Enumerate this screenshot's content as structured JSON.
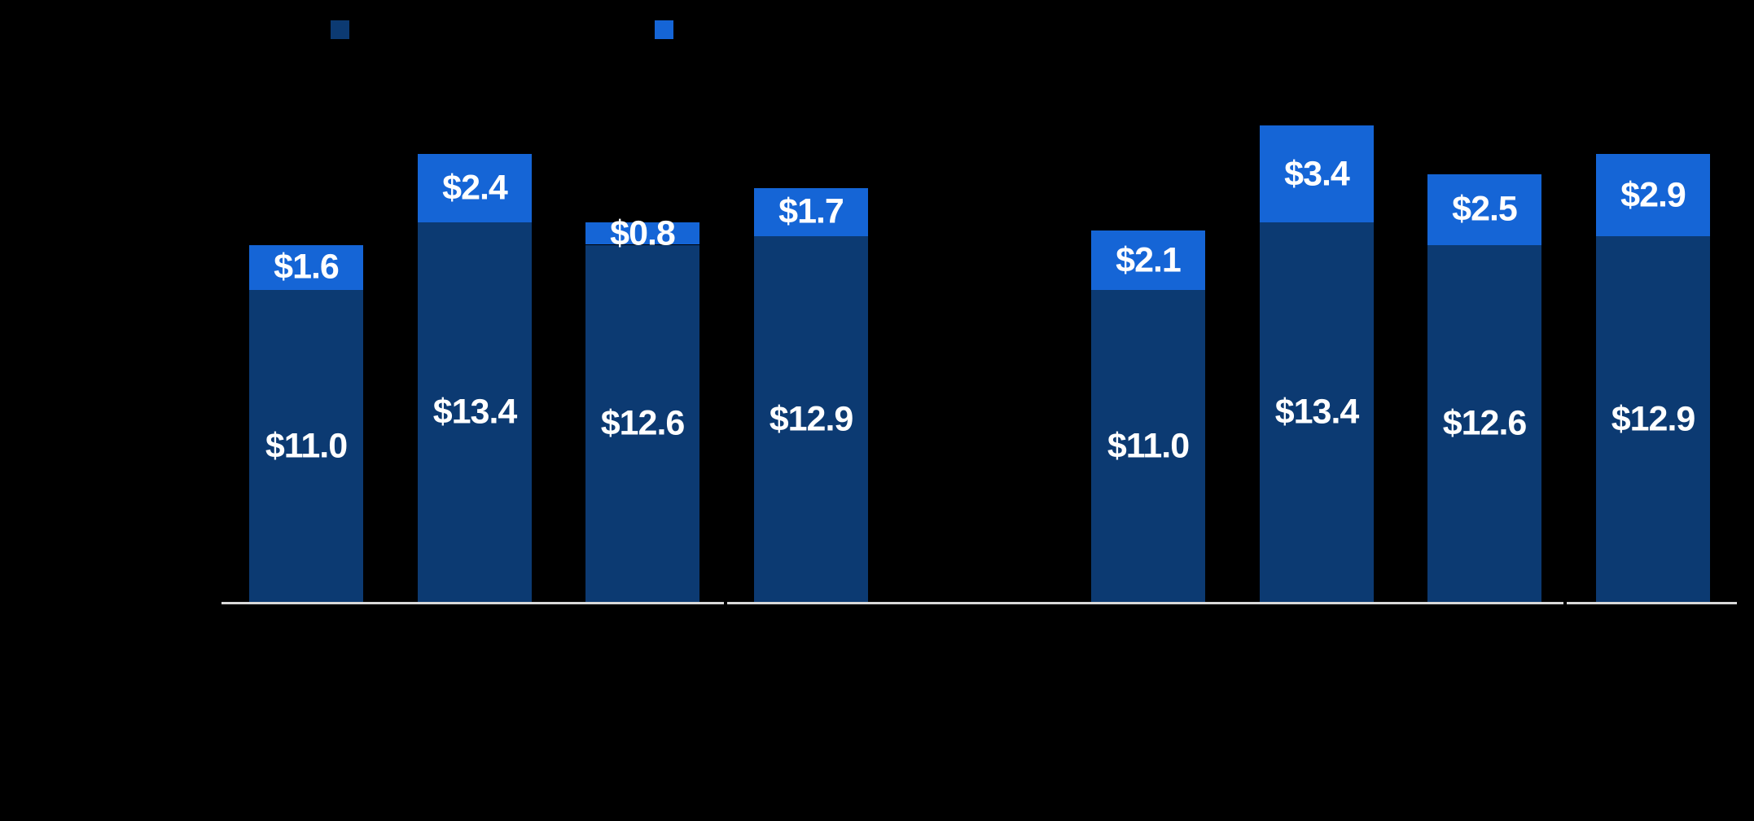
{
  "colors": {
    "background": "#000000",
    "series_bottom": "#0C3A72",
    "series_top": "#1565D6",
    "axis_line": "#D9D9D9",
    "label_text": "#FFFFFF"
  },
  "legend": {
    "items": [
      {
        "name": "series-1-swatch",
        "color": "#0C3A72"
      },
      {
        "name": "series-2-swatch",
        "color": "#1565D6"
      }
    ]
  },
  "chart_data": {
    "type": "bar",
    "stacked": true,
    "orientation": "vertical",
    "grid": false,
    "legend_position": "top",
    "value_prefix": "$",
    "series": [
      {
        "id": "bottom",
        "color": "#0C3A72"
      },
      {
        "id": "top",
        "color": "#1565D6"
      }
    ],
    "groups": [
      {
        "bars": [
          {
            "segments": [
              {
                "series": "bottom",
                "value": 11.0,
                "label": "$11.0"
              },
              {
                "series": "top",
                "value": 1.6,
                "label": "$1.6"
              }
            ]
          },
          {
            "segments": [
              {
                "series": "bottom",
                "value": 13.4,
                "label": "$13.4"
              },
              {
                "series": "top",
                "value": 2.4,
                "label": "$2.4"
              }
            ]
          },
          {
            "segments": [
              {
                "series": "bottom",
                "value": 12.6,
                "label": "$12.6"
              },
              {
                "series": "top",
                "value": 0.8,
                "label": "$0.8"
              }
            ]
          },
          {
            "segments": [
              {
                "series": "bottom",
                "value": 12.9,
                "label": "$12.9"
              },
              {
                "series": "top",
                "value": 1.7,
                "label": "$1.7"
              }
            ]
          }
        ]
      },
      {
        "bars": [
          {
            "segments": [
              {
                "series": "bottom",
                "value": 11.0,
                "label": "$11.0"
              },
              {
                "series": "top",
                "value": 2.1,
                "label": "$2.1"
              }
            ]
          },
          {
            "segments": [
              {
                "series": "bottom",
                "value": 13.4,
                "label": "$13.4"
              },
              {
                "series": "top",
                "value": 3.4,
                "label": "$3.4"
              }
            ]
          },
          {
            "segments": [
              {
                "series": "bottom",
                "value": 12.6,
                "label": "$12.6"
              },
              {
                "series": "top",
                "value": 2.5,
                "label": "$2.5"
              }
            ]
          },
          {
            "segments": [
              {
                "series": "bottom",
                "value": 12.9,
                "label": "$12.9"
              },
              {
                "series": "top",
                "value": 2.9,
                "label": "$2.9"
              }
            ]
          }
        ]
      }
    ],
    "baseline": {
      "color": "#D9D9D9",
      "note": "single baseline with small gaps before the last bar of each group"
    }
  }
}
